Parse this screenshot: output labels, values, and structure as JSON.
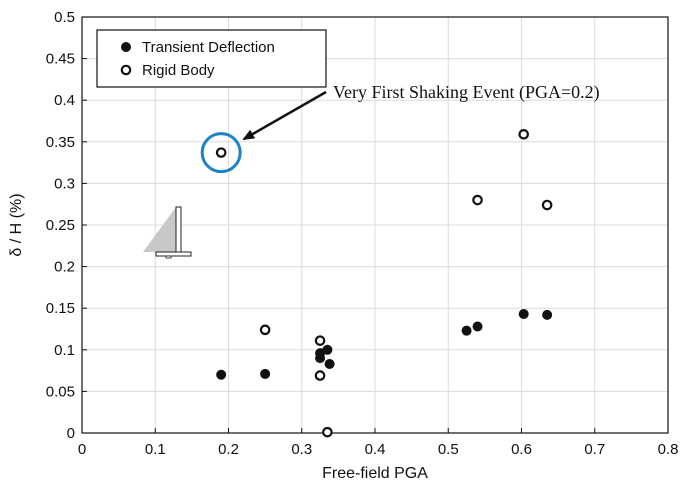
{
  "chart_data": {
    "type": "scatter",
    "xlabel": "Free-field PGA",
    "ylabel": "δ / H (%)",
    "xlim": [
      0,
      0.8
    ],
    "ylim": [
      0,
      0.5
    ],
    "xticks": [
      "0",
      "0.1",
      "0.2",
      "0.3",
      "0.4",
      "0.5",
      "0.6",
      "0.7",
      "0.8"
    ],
    "yticks": [
      "0",
      "0.05",
      "0.1",
      "0.15",
      "0.2",
      "0.25",
      "0.3",
      "0.35",
      "0.4",
      "0.45",
      "0.5"
    ],
    "grid": true,
    "legend_position": "top-left",
    "series": [
      {
        "name": "Transient Deflection",
        "marker": "filled-circle",
        "points": [
          {
            "x": 0.19,
            "y": 0.07
          },
          {
            "x": 0.25,
            "y": 0.071
          },
          {
            "x": 0.325,
            "y": 0.096
          },
          {
            "x": 0.325,
            "y": 0.09
          },
          {
            "x": 0.335,
            "y": 0.1
          },
          {
            "x": 0.338,
            "y": 0.083
          },
          {
            "x": 0.525,
            "y": 0.123
          },
          {
            "x": 0.54,
            "y": 0.128
          },
          {
            "x": 0.603,
            "y": 0.143
          },
          {
            "x": 0.635,
            "y": 0.142
          }
        ]
      },
      {
        "name": "Rigid Body",
        "marker": "open-circle",
        "points": [
          {
            "x": 0.19,
            "y": 0.337
          },
          {
            "x": 0.25,
            "y": 0.124
          },
          {
            "x": 0.325,
            "y": 0.111
          },
          {
            "x": 0.325,
            "y": 0.069
          },
          {
            "x": 0.335,
            "y": 0.001
          },
          {
            "x": 0.54,
            "y": 0.28
          },
          {
            "x": 0.603,
            "y": 0.359
          },
          {
            "x": 0.635,
            "y": 0.274
          }
        ]
      }
    ],
    "annotation": {
      "text": "Very First Shaking Event (PGA=0.2)",
      "target": {
        "x": 0.19,
        "y": 0.337
      },
      "highlight_color": "#1f82c8"
    }
  }
}
